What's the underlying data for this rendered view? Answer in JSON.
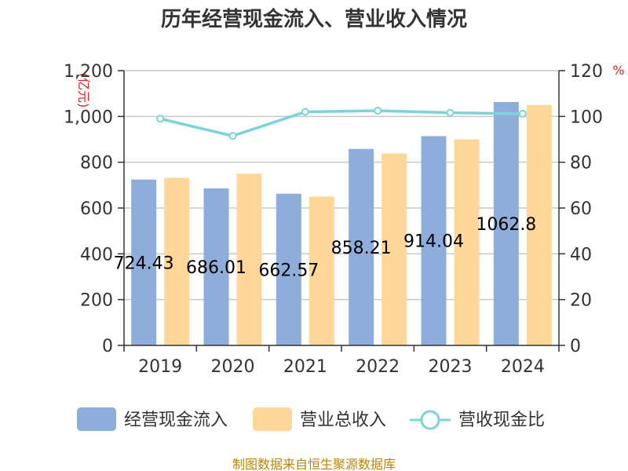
{
  "title": "历年经营现金流入、营业收入情况",
  "left_unit": "(亿元)",
  "right_unit": "%",
  "source": "制图数据来自恒生聚源数据库",
  "colors": {
    "cash": "#8eadda",
    "revenue": "#ffd899",
    "ratio": "#7dd3d8",
    "grid": "#c8c8c8",
    "axis": "#333333"
  },
  "chart_data": {
    "type": "bar",
    "categories": [
      "2019",
      "2020",
      "2021",
      "2022",
      "2023",
      "2024"
    ],
    "series": [
      {
        "name": "经营现金流入",
        "values": [
          724.43,
          686.01,
          662.57,
          858.21,
          914.04,
          1062.8
        ],
        "labels": [
          "724.43",
          "686.01",
          "662.57",
          "858.21",
          "914.04",
          "1062.8"
        ]
      },
      {
        "name": "营业总收入",
        "values": [
          732,
          750,
          650,
          838,
          900,
          1050
        ]
      },
      {
        "name": "营收现金比",
        "type": "line",
        "axis": "right",
        "values": [
          99,
          91.5,
          102,
          102.5,
          101.6,
          101.2
        ]
      }
    ],
    "ylim": [
      0,
      1200
    ],
    "yticks": [
      "0",
      "200",
      "400",
      "600",
      "800",
      "1,000",
      "1,200"
    ],
    "y2lim": [
      0,
      120
    ],
    "y2ticks": [
      "0",
      "20",
      "40",
      "60",
      "80",
      "100",
      "120"
    ],
    "grid": true,
    "legend": "bottom"
  }
}
